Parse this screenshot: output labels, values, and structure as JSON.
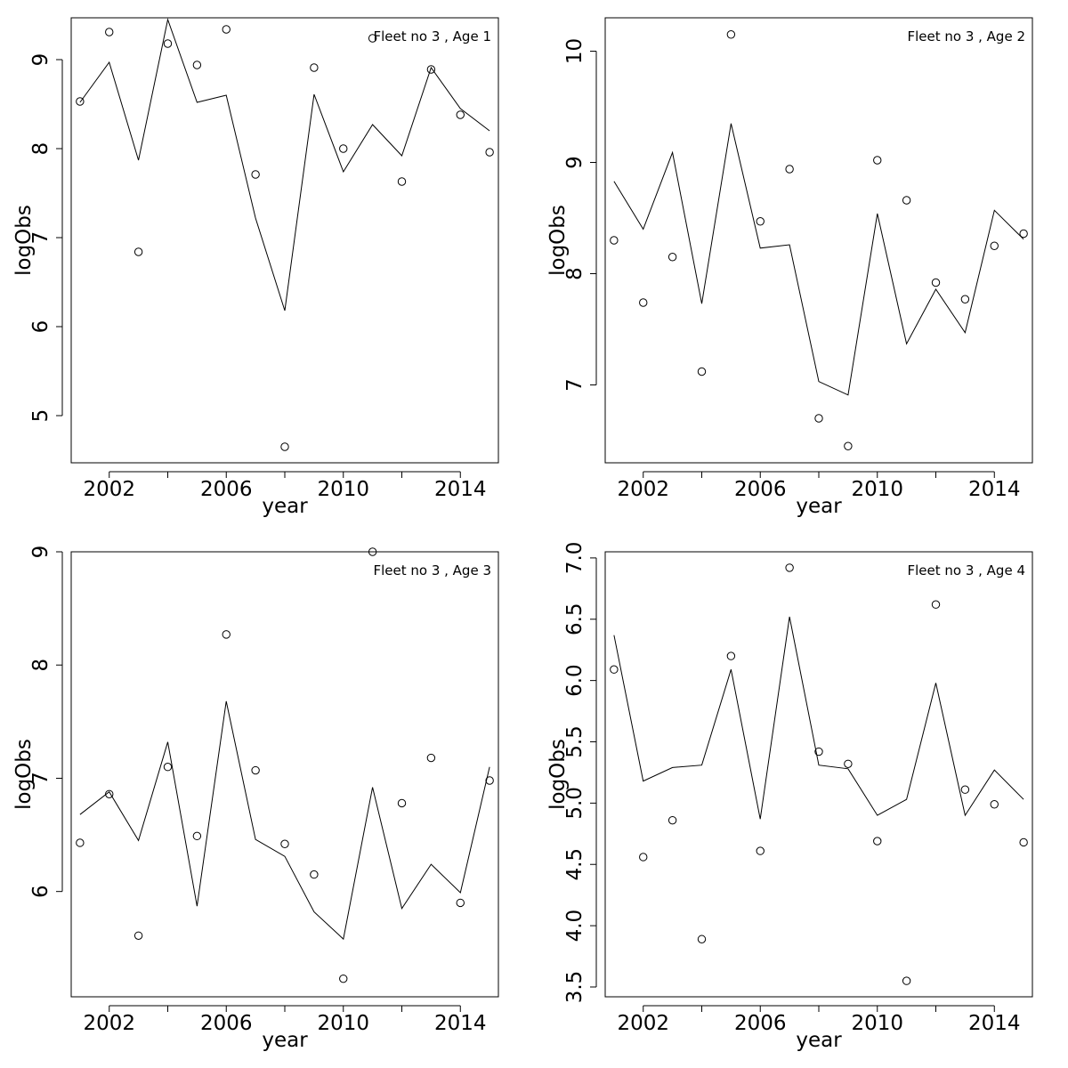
{
  "chart_data": [
    {
      "type": "line",
      "title": "Fleet no 3 , Age 1",
      "xlabel": "year",
      "ylabel": "logObs",
      "xlim": [
        2000.7,
        2015.3
      ],
      "ylim": [
        4.47,
        9.47
      ],
      "xticks": [
        2002,
        2004,
        2006,
        2008,
        2010,
        2012,
        2014
      ],
      "xtick_labels": [
        "2002",
        "",
        "2006",
        "",
        "2010",
        "",
        "2014"
      ],
      "yticks": [
        5,
        6,
        7,
        8,
        9
      ],
      "ytick_labels": [
        "5",
        "6",
        "7",
        "8",
        "9"
      ],
      "x": [
        2001,
        2002,
        2003,
        2004,
        2005,
        2006,
        2007,
        2008,
        2009,
        2010,
        2011,
        2012,
        2013,
        2014,
        2015
      ],
      "series": [
        {
          "kind": "line",
          "values": [
            8.52,
            8.97,
            7.87,
            9.45,
            8.52,
            8.6,
            7.22,
            6.18,
            8.61,
            7.74,
            8.27,
            7.92,
            8.91,
            8.45,
            8.2
          ]
        },
        {
          "kind": "points",
          "values": [
            8.53,
            9.31,
            6.84,
            9.18,
            8.94,
            9.34,
            7.71,
            4.65,
            8.91,
            8.0,
            9.24,
            7.63,
            8.89,
            8.38,
            7.96
          ]
        }
      ]
    },
    {
      "type": "line",
      "title": "Fleet no 3 , Age 2",
      "xlabel": "year",
      "ylabel": "logObs",
      "xlim": [
        2000.7,
        2015.3
      ],
      "ylim": [
        6.3,
        10.3
      ],
      "xticks": [
        2002,
        2004,
        2006,
        2008,
        2010,
        2012,
        2014
      ],
      "xtick_labels": [
        "2002",
        "",
        "2006",
        "",
        "2010",
        "",
        "2014"
      ],
      "yticks": [
        7,
        8,
        9,
        10
      ],
      "ytick_labels": [
        "7",
        "8",
        "9",
        "10"
      ],
      "x": [
        2001,
        2002,
        2003,
        2004,
        2005,
        2006,
        2007,
        2008,
        2009,
        2010,
        2011,
        2012,
        2013,
        2014,
        2015
      ],
      "series": [
        {
          "kind": "line",
          "values": [
            8.83,
            8.4,
            9.09,
            7.73,
            9.35,
            8.23,
            8.26,
            7.03,
            6.91,
            8.54,
            7.37,
            7.86,
            7.47,
            8.57,
            8.31
          ]
        },
        {
          "kind": "points",
          "values": [
            8.3,
            7.74,
            8.15,
            7.12,
            10.15,
            8.47,
            8.94,
            6.7,
            6.45,
            9.02,
            8.66,
            7.92,
            7.77,
            8.25,
            8.36
          ]
        }
      ]
    },
    {
      "type": "line",
      "title": "Fleet no 3 , Age 3",
      "xlabel": "year",
      "ylabel": "logObs",
      "xlim": [
        2000.7,
        2015.3
      ],
      "ylim": [
        5.07,
        9.0
      ],
      "xticks": [
        2002,
        2004,
        2006,
        2008,
        2010,
        2012,
        2014
      ],
      "xtick_labels": [
        "2002",
        "",
        "2006",
        "",
        "2010",
        "",
        "2014"
      ],
      "yticks": [
        6,
        7,
        8,
        9
      ],
      "ytick_labels": [
        "6",
        "7",
        "8",
        "9"
      ],
      "x": [
        2001,
        2002,
        2003,
        2004,
        2005,
        2006,
        2007,
        2008,
        2009,
        2010,
        2011,
        2012,
        2013,
        2014,
        2015
      ],
      "series": [
        {
          "kind": "line",
          "values": [
            6.68,
            6.88,
            6.45,
            7.32,
            5.87,
            7.68,
            6.46,
            6.31,
            5.82,
            5.58,
            6.92,
            5.85,
            6.24,
            5.99,
            7.1
          ]
        },
        {
          "kind": "points",
          "values": [
            6.43,
            6.86,
            5.61,
            7.1,
            6.49,
            8.27,
            7.07,
            6.42,
            6.15,
            5.23,
            9.0,
            6.78,
            7.18,
            5.9,
            6.98
          ]
        }
      ]
    },
    {
      "type": "line",
      "title": "Fleet no 3 , Age 4",
      "xlabel": "year",
      "ylabel": "logObs",
      "xlim": [
        2000.7,
        2015.3
      ],
      "ylim": [
        3.42,
        7.05
      ],
      "xticks": [
        2002,
        2004,
        2006,
        2008,
        2010,
        2012,
        2014
      ],
      "xtick_labels": [
        "2002",
        "",
        "2006",
        "",
        "2010",
        "",
        "2014"
      ],
      "yticks": [
        3.5,
        4.0,
        4.5,
        5.0,
        5.5,
        6.0,
        6.5,
        7.0
      ],
      "ytick_labels": [
        "3.5",
        "4.0",
        "4.5",
        "5.0",
        "5.5",
        "6.0",
        "6.5",
        "7.0"
      ],
      "x": [
        2001,
        2002,
        2003,
        2004,
        2005,
        2006,
        2007,
        2008,
        2009,
        2010,
        2011,
        2012,
        2013,
        2014,
        2015
      ],
      "series": [
        {
          "kind": "line",
          "values": [
            6.37,
            5.18,
            5.29,
            5.31,
            6.09,
            4.87,
            6.52,
            5.31,
            5.28,
            4.9,
            5.03,
            5.98,
            4.9,
            5.27,
            5.03
          ]
        },
        {
          "kind": "points",
          "values": [
            6.09,
            4.56,
            4.86,
            3.89,
            6.2,
            4.61,
            6.92,
            5.42,
            5.32,
            4.69,
            3.55,
            6.62,
            5.11,
            4.99,
            4.68
          ]
        }
      ]
    }
  ]
}
